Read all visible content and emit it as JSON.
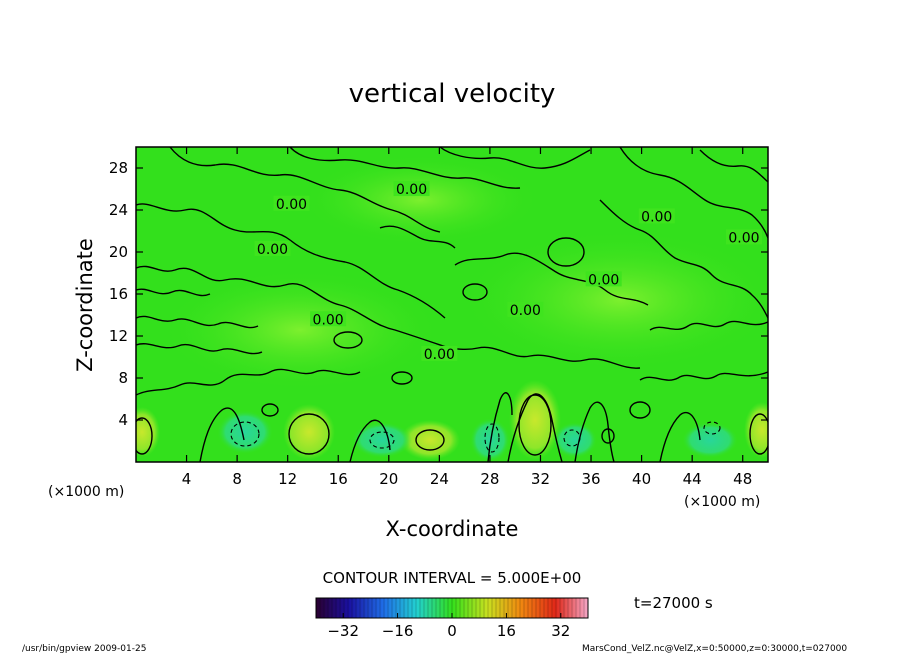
{
  "chart_data": {
    "type": "heatmap",
    "title": "vertical velocity",
    "xlabel": "X-coordinate",
    "ylabel": "Z-coordinate",
    "x_unit_label": "(×1000 m)",
    "y_unit_label": "(×1000 m)",
    "xlim": [
      0,
      50
    ],
    "ylim": [
      0,
      30
    ],
    "x_ticks": [
      4,
      8,
      12,
      16,
      20,
      24,
      28,
      32,
      36,
      40,
      44,
      48
    ],
    "y_ticks": [
      4,
      8,
      12,
      16,
      20,
      24,
      28
    ],
    "contour_interval_text": "CONTOUR INTERVAL = 5.000E+00",
    "contour_labels": [
      {
        "text": "0.00",
        "x": 12.3,
        "y": 24.5
      },
      {
        "text": "0.00",
        "x": 10.8,
        "y": 20.2
      },
      {
        "text": "0.00",
        "x": 21.8,
        "y": 25.9
      },
      {
        "text": "0.00",
        "x": 15.2,
        "y": 13.5
      },
      {
        "text": "0.00",
        "x": 24.0,
        "y": 10.2
      },
      {
        "text": "0.00",
        "x": 30.8,
        "y": 14.4
      },
      {
        "text": "0.00",
        "x": 37.0,
        "y": 17.3
      },
      {
        "text": "0.00",
        "x": 41.2,
        "y": 23.3
      },
      {
        "text": "0.00",
        "x": 48.1,
        "y": 21.3
      }
    ],
    "colorbar": {
      "min": -40,
      "max": 40,
      "ticks": [
        -32,
        -16,
        0,
        16,
        32
      ],
      "tick_labels": [
        "−32",
        "−16",
        "0",
        "16",
        "32"
      ]
    },
    "time_label": "t=27000 s",
    "colors": {
      "field_base": "#33e01c",
      "field_light": "#6ff02a",
      "positive_core": "#b8e82a",
      "negative_core": "#2ddc8a",
      "contour": "#000000"
    }
  },
  "footer": {
    "left": "/usr/bin/gpview   2009-01-25",
    "right": "MarsCond_VelZ.nc@VelZ,x=0:50000,z=0:30000,t=027000"
  }
}
